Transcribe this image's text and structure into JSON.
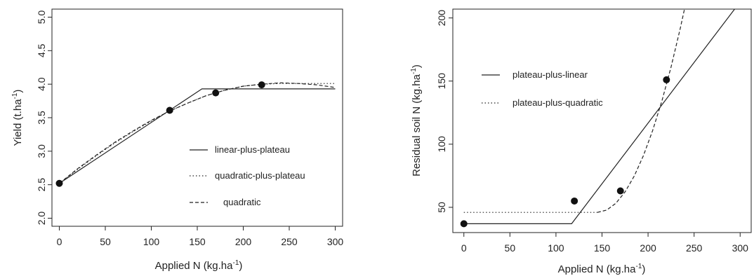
{
  "chart_data": [
    {
      "type": "line",
      "xlabel": "Applied N (kg.ha",
      "xlabel_sup": "-1",
      "xlabel_tail": ")",
      "ylabel": "Yield (t.ha",
      "ylabel_sup": "-1",
      "ylabel_tail": ")",
      "xlim": [
        -8,
        308
      ],
      "ylim": [
        1.88,
        5.12
      ],
      "xticks": [
        0,
        50,
        100,
        150,
        200,
        250,
        300
      ],
      "xtick_labels": [
        "0",
        "50",
        "100",
        "150",
        "200",
        "250",
        "300"
      ],
      "yticks": [
        2.0,
        2.5,
        3.0,
        3.5,
        4.0,
        4.5,
        5.0
      ],
      "ytick_labels": [
        "2.0",
        "2.5",
        "3.0",
        "3.5",
        "4.0",
        "4.5",
        "5.0"
      ],
      "grid": false,
      "legend_position": "lower-right",
      "points": {
        "x": [
          0,
          120,
          170,
          220
        ],
        "y": [
          2.52,
          3.61,
          3.87,
          3.99
        ]
      },
      "series": [
        {
          "name": "linear-plus-plateau",
          "style": "solid",
          "x": [
            0,
            155,
            300
          ],
          "y": [
            2.52,
            3.93,
            3.93
          ]
        },
        {
          "name": "quadratic-plus-plateau",
          "style": "dotted",
          "x": [
            0,
            20,
            40,
            60,
            80,
            100,
            120,
            140,
            160,
            180,
            200,
            220,
            240,
            255,
            300
          ],
          "y": [
            2.52,
            2.73,
            2.93,
            3.12,
            3.29,
            3.45,
            3.6,
            3.72,
            3.83,
            3.91,
            3.97,
            4.0,
            4.01,
            4.01,
            4.01
          ]
        },
        {
          "name": "quadratic",
          "style": "dashed",
          "x": [
            0,
            20,
            40,
            60,
            80,
            100,
            120,
            140,
            160,
            180,
            200,
            220,
            240,
            260,
            280,
            300
          ],
          "y": [
            2.52,
            2.74,
            2.94,
            3.13,
            3.3,
            3.46,
            3.6,
            3.72,
            3.83,
            3.91,
            3.97,
            4.0,
            4.02,
            4.01,
            3.99,
            3.95
          ]
        }
      ]
    },
    {
      "type": "line",
      "xlabel": "Applied N  (kg.ha",
      "xlabel_sup": "-1",
      "xlabel_tail": ")",
      "ylabel": "Residual soil N (kg.ha",
      "ylabel_sup": "-1",
      "ylabel_tail": ")",
      "xlim": [
        -12,
        312
      ],
      "ylim": [
        30,
        207
      ],
      "xticks": [
        0,
        50,
        100,
        150,
        200,
        250,
        300
      ],
      "xtick_labels": [
        "0",
        "50",
        "100",
        "150",
        "200",
        "250",
        "300"
      ],
      "yticks": [
        50,
        100,
        150,
        200
      ],
      "ytick_labels": [
        "50",
        "100",
        "150",
        "200"
      ],
      "grid": false,
      "legend_position": "upper-left",
      "points": {
        "x": [
          0,
          120,
          170,
          220
        ],
        "y": [
          37,
          55,
          63,
          151
        ]
      },
      "series": [
        {
          "name": "plateau-plus-linear",
          "style": "solid",
          "x": [
            0,
            117,
            294
          ],
          "y": [
            37,
            37,
            207
          ]
        },
        {
          "name": "plateau-plus-quadratic",
          "style": "dotted",
          "x": [
            0,
            145
          ],
          "y": [
            46,
            46
          ]
        },
        {
          "name": "",
          "style": "dashed",
          "x": [
            145,
            155,
            165,
            175,
            185,
            195,
            205,
            215,
            225,
            235,
            241
          ],
          "y": [
            46,
            47.8,
            53.2,
            62.2,
            74.8,
            91,
            110.8,
            134.2,
            161.2,
            191.8,
            211.9
          ]
        }
      ]
    }
  ]
}
